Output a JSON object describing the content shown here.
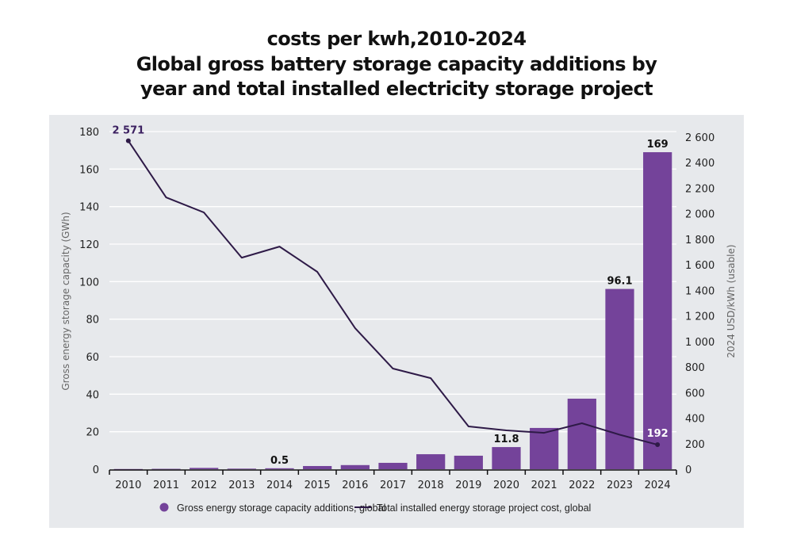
{
  "chart_data": {
    "type": "bar",
    "title_lines": [
      "costs per kwh,2010-2024",
      "Global gross battery storage capacity additions by",
      "year and total installed electricity storage project"
    ],
    "categories": [
      "2010",
      "2011",
      "2012",
      "2013",
      "2014",
      "2015",
      "2016",
      "2017",
      "2018",
      "2019",
      "2020",
      "2021",
      "2022",
      "2023",
      "2024"
    ],
    "series": [
      {
        "name": "Gross energy storage capacity additions, global",
        "type": "bar",
        "axis": "left",
        "color": "#74439a",
        "values": [
          0.1,
          0.2,
          0.7,
          0.3,
          0.5,
          1.7,
          2.2,
          3.4,
          8.0,
          7.2,
          11.8,
          22.0,
          37.6,
          96.1,
          169
        ],
        "labels": {
          "4": "0.5",
          "10": "11.8",
          "13": "96.1",
          "14": "169"
        }
      },
      {
        "name": "Total installed energy storage project cost, global",
        "type": "line",
        "axis": "right",
        "color": "#2e1a47",
        "values": [
          2571,
          2128,
          2010,
          1656,
          1743,
          1545,
          1104,
          788,
          713,
          335,
          304,
          285,
          360,
          270,
          192
        ],
        "labels": {
          "0": "2 571",
          "14": "192"
        }
      }
    ],
    "xlabel": "",
    "ylabel": "Gross energy storage capacity (GWh)",
    "ylim": [
      0,
      180
    ],
    "yticks": [
      0,
      20,
      40,
      60,
      80,
      100,
      120,
      140,
      160,
      180
    ],
    "y2label": "2024 USD/kWh (usable)",
    "y2lim": [
      0,
      2600
    ],
    "y2ticks": [
      0,
      200,
      400,
      600,
      800,
      1000,
      1200,
      1400,
      1600,
      1800,
      2000,
      2200,
      2400,
      2600
    ],
    "y2tick_labels": [
      "0",
      "200",
      "400",
      "600",
      "800",
      "1 000",
      "1 200",
      "1 400",
      "1 600",
      "1 800",
      "2 000",
      "2 200",
      "2 400",
      "2 600"
    ],
    "grid": true,
    "legend": "bottom-center"
  }
}
